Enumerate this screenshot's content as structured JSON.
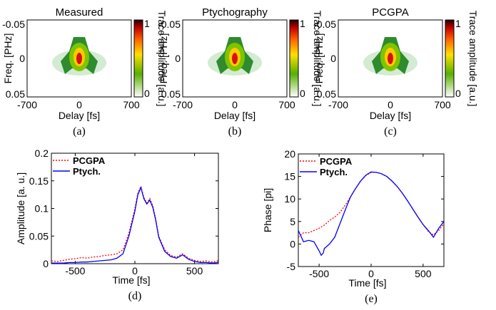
{
  "chart_data": [
    {
      "type": "heatmap",
      "title": "Measured",
      "caption": "(a)",
      "xlabel": "Delay [fs]",
      "ylabel": "Freq. [PHz]",
      "xticks": [
        "-700",
        "0",
        "700"
      ],
      "yticks": [
        "-0.05",
        "0",
        "0.05"
      ],
      "xlim": [
        -700,
        700
      ],
      "ylim": [
        -0.05,
        0.05
      ],
      "colorbar_label": "Trace amplitude [a.u.]",
      "colorbar_ticks": [
        "1",
        "0"
      ],
      "clim": [
        0,
        1
      ]
    },
    {
      "type": "heatmap",
      "title": "Ptychography",
      "caption": "(b)",
      "xlabel": "Delay [fs]",
      "ylabel": "Freq. [PHz]",
      "xticks": [
        "-700",
        "0",
        "700"
      ],
      "yticks": [
        "-0.05",
        "0",
        "0.05"
      ],
      "xlim": [
        -700,
        700
      ],
      "ylim": [
        -0.05,
        0.05
      ],
      "colorbar_label": "Trace amplitude [a.u.]",
      "colorbar_ticks": [
        "1",
        "0"
      ],
      "clim": [
        0,
        1
      ]
    },
    {
      "type": "heatmap",
      "title": "PCGPA",
      "caption": "(c)",
      "xlabel": "Delay [fs]",
      "ylabel": "Freq. [PHz]",
      "xticks": [
        "-700",
        "0",
        "700"
      ],
      "yticks": [
        "-0.05",
        "0",
        "0.05"
      ],
      "xlim": [
        -700,
        700
      ],
      "ylim": [
        -0.05,
        0.05
      ],
      "colorbar_label": "Trace amplitude [a.u.]",
      "colorbar_ticks": [
        "1",
        "0"
      ],
      "clim": [
        0,
        1
      ]
    },
    {
      "type": "line",
      "caption": "(d)",
      "xlabel": "Time [fs]",
      "ylabel": "Amplitude [a. u.]",
      "xlim": [
        -700,
        700
      ],
      "ylim": [
        0,
        0.2
      ],
      "xticks": [
        -500,
        0,
        500
      ],
      "yticks": [
        0,
        0.05,
        0.1,
        0.15,
        0.2
      ],
      "ytick_labels": [
        "0",
        "0.05",
        "0.1",
        "0.15",
        "0.2"
      ],
      "legend": "top-left",
      "x": [
        -700,
        -650,
        -600,
        -550,
        -500,
        -450,
        -400,
        -350,
        -300,
        -250,
        -200,
        -150,
        -100,
        -50,
        0,
        25,
        50,
        75,
        100,
        125,
        150,
        175,
        200,
        250,
        300,
        350,
        400,
        450,
        500,
        550,
        600,
        650,
        700
      ],
      "series": [
        {
          "name": "PCGPA",
          "color": "#ff0000",
          "dash": true,
          "values": [
            0.005,
            0.004,
            0.006,
            0.008,
            0.009,
            0.011,
            0.01,
            0.012,
            0.013,
            0.015,
            0.016,
            0.018,
            0.025,
            0.055,
            0.1,
            0.128,
            0.14,
            0.12,
            0.11,
            0.118,
            0.105,
            0.08,
            0.05,
            0.025,
            0.015,
            0.012,
            0.018,
            0.01,
            0.006,
            0.004,
            0.005,
            0.003,
            0.005
          ]
        },
        {
          "name": "Ptych.",
          "color": "#0000ff",
          "dash": false,
          "values": [
            0.001,
            0.001,
            0.001,
            0.002,
            0.002,
            0.003,
            0.003,
            0.004,
            0.005,
            0.006,
            0.007,
            0.01,
            0.018,
            0.05,
            0.095,
            0.125,
            0.138,
            0.118,
            0.108,
            0.115,
            0.102,
            0.078,
            0.048,
            0.022,
            0.013,
            0.01,
            0.016,
            0.008,
            0.004,
            0.002,
            0.002,
            0.001,
            0.002
          ]
        }
      ]
    },
    {
      "type": "line",
      "caption": "(e)",
      "xlabel": "Time [fs]",
      "ylabel": "Phase [pi]",
      "xlim": [
        -700,
        700
      ],
      "ylim": [
        -5,
        20
      ],
      "xticks": [
        -500,
        0,
        500
      ],
      "yticks": [
        -5,
        0,
        5,
        10,
        15,
        20
      ],
      "ytick_labels": [
        "-5",
        "0",
        "5",
        "10",
        "15",
        "20"
      ],
      "legend": "top-left",
      "x": [
        -700,
        -650,
        -600,
        -550,
        -500,
        -480,
        -460,
        -450,
        -400,
        -350,
        -300,
        -250,
        -200,
        -150,
        -100,
        -50,
        0,
        50,
        100,
        150,
        200,
        250,
        300,
        350,
        400,
        450,
        500,
        550,
        600,
        650,
        700
      ],
      "series": [
        {
          "name": "PCGPA",
          "color": "#ff0000",
          "dash": true,
          "values": [
            1.5,
            2.5,
            2.5,
            3.0,
            3.5,
            3.8,
            4.0,
            4.2,
            5.2,
            6.0,
            7.0,
            8.6,
            10.4,
            12.3,
            14.0,
            15.2,
            15.9,
            15.9,
            15.6,
            15.0,
            14.0,
            12.8,
            11.3,
            9.6,
            7.8,
            6.0,
            4.3,
            2.8,
            2.0,
            3.0,
            4.5
          ]
        },
        {
          "name": "Ptych.",
          "color": "#0000ff",
          "dash": false,
          "values": [
            3.0,
            0.5,
            0.8,
            0.5,
            -1.5,
            -2.5,
            -2.0,
            -1.0,
            0.0,
            1.5,
            4.5,
            7.5,
            10.4,
            12.3,
            14.0,
            15.3,
            16.0,
            15.9,
            15.6,
            15.0,
            14.0,
            12.8,
            11.3,
            9.6,
            7.8,
            6.0,
            4.3,
            3.0,
            1.5,
            3.5,
            5.0
          ]
        }
      ]
    }
  ]
}
